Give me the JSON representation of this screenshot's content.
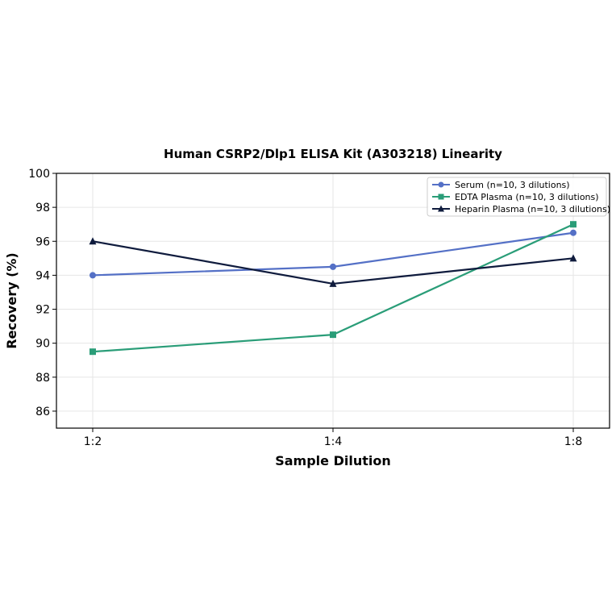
{
  "chart_data": {
    "type": "line",
    "title": "Human CSRP2/Dlp1 ELISA Kit (A303218) Linearity",
    "xlabel": "Sample Dilution",
    "ylabel": "Recovery (%)",
    "categories": [
      "1:2",
      "1:4",
      "1:8"
    ],
    "ylim": [
      85,
      100
    ],
    "yticks": [
      86,
      88,
      90,
      92,
      94,
      96,
      98,
      100
    ],
    "grid": true,
    "legend_position": "top-right",
    "series": [
      {
        "name": "Serum (n=10, 3 dilutions)",
        "values": [
          94.0,
          94.5,
          96.5
        ],
        "color": "#5470c6",
        "marker": "circle"
      },
      {
        "name": "EDTA Plasma (n=10, 3 dilutions)",
        "values": [
          89.5,
          90.5,
          97.0
        ],
        "color": "#2a9d78",
        "marker": "square"
      },
      {
        "name": "Heparin Plasma (n=10, 3 dilutions)",
        "values": [
          96.0,
          93.5,
          95.0
        ],
        "color": "#0f1b3d",
        "marker": "triangle"
      }
    ]
  }
}
